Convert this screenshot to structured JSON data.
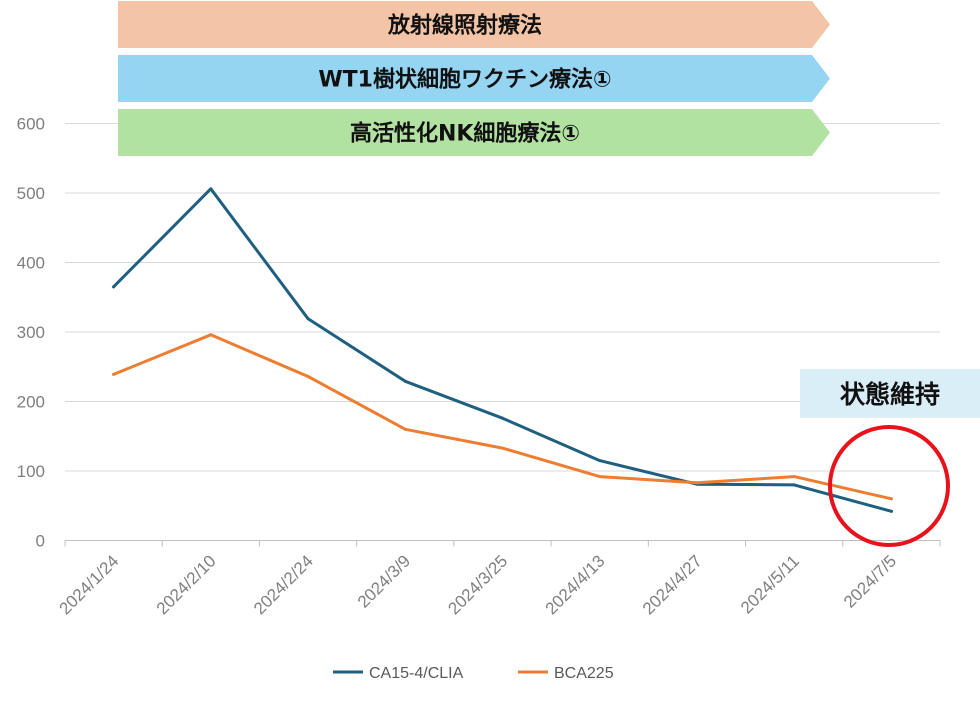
{
  "chart_data": {
    "type": "line",
    "categories": [
      "2024/1/24",
      "2024/2/10",
      "2024/2/24",
      "2024/3/9",
      "2024/3/25",
      "2024/4/13",
      "2024/4/27",
      "2024/5/11",
      "2024/7/5"
    ],
    "series": [
      {
        "name": "CA15-4/CLIA",
        "color": "#1f5f7f",
        "values": [
          365,
          506,
          319,
          229,
          176,
          115,
          81,
          80,
          42
        ]
      },
      {
        "name": "BCA225",
        "color": "#ed7d31",
        "values": [
          239,
          296,
          236,
          160,
          133,
          92,
          83,
          92,
          60
        ]
      }
    ],
    "yticks": [
      "0",
      "100",
      "200",
      "300",
      "400",
      "500",
      "600"
    ],
    "ylim": [
      0,
      600
    ],
    "grid": true,
    "legend": "bottom"
  },
  "banners": [
    {
      "label": "放射線照射療法",
      "color": "#f4c4a6"
    },
    {
      "label": "WT1樹状細胞ワクチン療法①",
      "color": "#95d5f2"
    },
    {
      "label": "高活性化NK細胞療法①",
      "color": "#b2e2a2"
    }
  ],
  "status": {
    "label": "状態維持",
    "color": "#daeef8",
    "circle_color": "#e8121b"
  }
}
